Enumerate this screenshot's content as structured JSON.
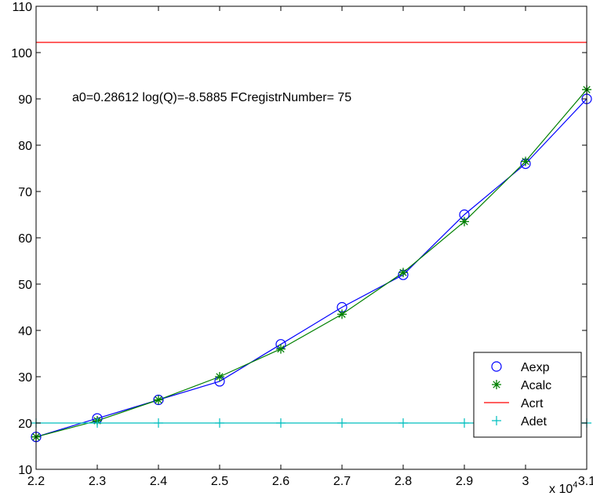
{
  "chart_data": {
    "type": "line",
    "title": "",
    "xlabel": "",
    "ylabel": "",
    "x_scale_label": "x 10",
    "x_scale_exponent": "4",
    "annotation": "a0=0.28612 log(Q)=-8.5885  FCregistrNumber= 75",
    "xlim": [
      2.2,
      3.1
    ],
    "ylim": [
      10,
      110
    ],
    "x_ticks": [
      2.2,
      2.3,
      2.4,
      2.5,
      2.6,
      2.7,
      2.8,
      2.9,
      3.0,
      3.1
    ],
    "x_tick_labels": [
      "2.2",
      "2.3",
      "2.4",
      "2.5",
      "2.6",
      "2.7",
      "2.8",
      "2.9",
      "3",
      "3.1"
    ],
    "y_ticks": [
      10,
      20,
      30,
      40,
      50,
      60,
      70,
      80,
      90,
      100,
      110
    ],
    "y_tick_labels": [
      "10",
      "20",
      "30",
      "40",
      "50",
      "60",
      "70",
      "80",
      "90",
      "100",
      "110"
    ],
    "grid": false,
    "legend_position": "bottom-right",
    "series": [
      {
        "name": "Aexp",
        "color": "#0000ff",
        "marker": "circle",
        "x": [
          2.2,
          2.3,
          2.4,
          2.5,
          2.6,
          2.7,
          2.8,
          2.9,
          3.0,
          3.1
        ],
        "values": [
          17,
          21,
          25,
          29,
          37,
          45,
          52,
          65,
          76,
          90
        ]
      },
      {
        "name": "Acalc",
        "color": "#008000",
        "marker": "asterisk",
        "x": [
          2.2,
          2.3,
          2.4,
          2.5,
          2.6,
          2.7,
          2.8,
          2.9,
          3.0,
          3.1
        ],
        "values": [
          17,
          20.5,
          25,
          30,
          36,
          43.5,
          52.5,
          63.5,
          76.5,
          92
        ]
      },
      {
        "name": "Acrt",
        "color": "#ff0000",
        "marker": "none",
        "x": [
          2.2,
          3.1
        ],
        "values": [
          102.2,
          102.2
        ]
      },
      {
        "name": "Adet",
        "color": "#00bfbf",
        "marker": "plus",
        "x": [
          2.2,
          2.3,
          2.4,
          2.5,
          2.6,
          2.7,
          2.8,
          2.9,
          3.0,
          3.1
        ],
        "values": [
          20,
          20,
          20,
          20,
          20,
          20,
          20,
          20,
          20,
          20
        ]
      }
    ]
  }
}
